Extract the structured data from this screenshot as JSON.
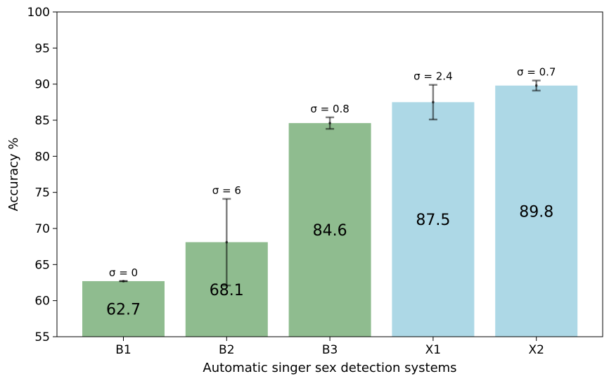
{
  "chart_data": {
    "type": "bar",
    "title": "",
    "xlabel": "Automatic singer sex detection systems",
    "ylabel": "Accuracy %",
    "ylim": [
      55,
      100
    ],
    "yticks": [
      55,
      60,
      65,
      70,
      75,
      80,
      85,
      90,
      95,
      100
    ],
    "categories": [
      "B1",
      "B2",
      "B3",
      "X1",
      "X2"
    ],
    "values": [
      62.7,
      68.1,
      84.6,
      87.5,
      89.8
    ],
    "value_labels": [
      "62.7",
      "68.1",
      "84.6",
      "87.5",
      "89.8"
    ],
    "errors": [
      0,
      6,
      0.8,
      2.4,
      0.7
    ],
    "error_labels": [
      "σ = 0",
      "σ = 6",
      "σ = 0.8",
      "σ = 2.4",
      "σ = 0.7"
    ],
    "bar_colors": [
      "#8fbc8f",
      "#8fbc8f",
      "#8fbc8f",
      "#add8e6",
      "#add8e6"
    ],
    "grid": false,
    "legend": "none"
  }
}
